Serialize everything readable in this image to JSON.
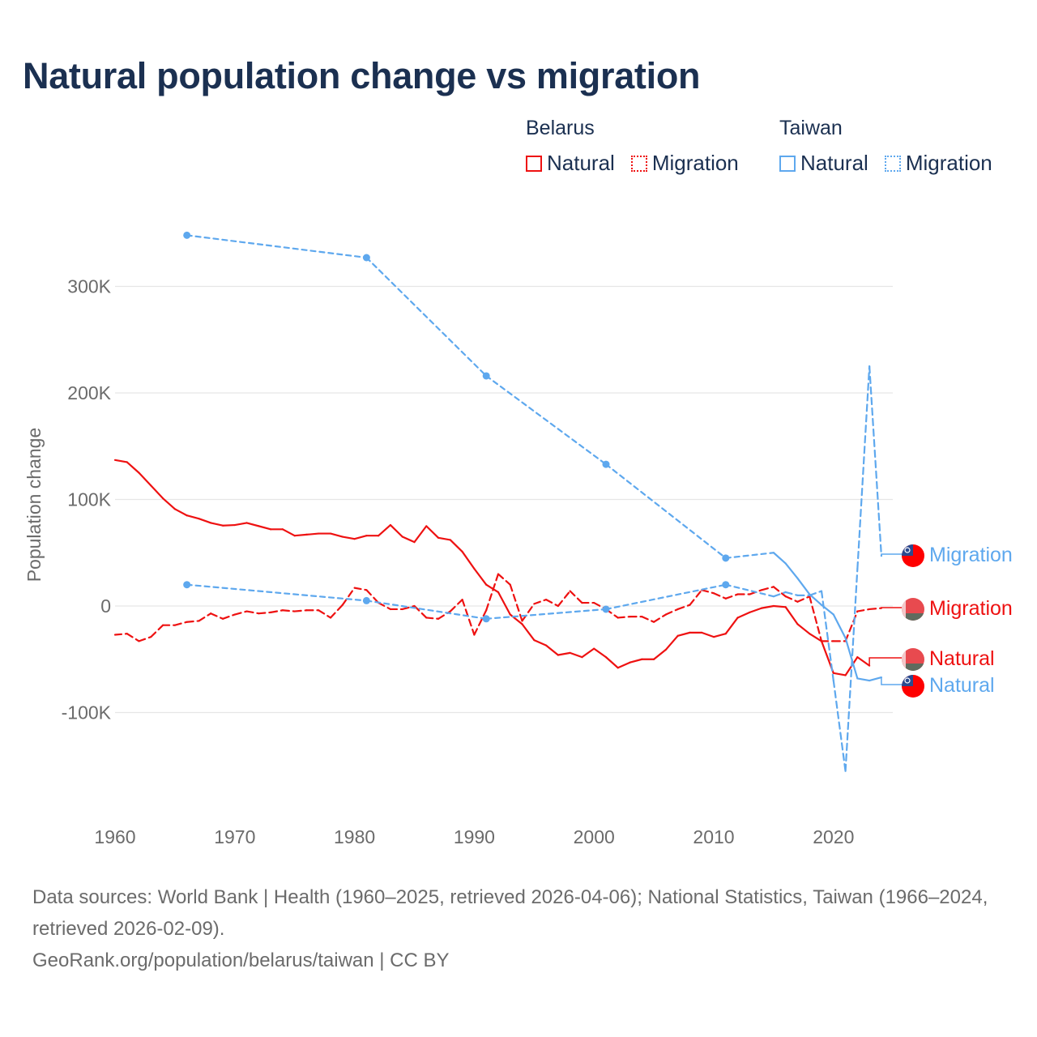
{
  "title": "Natural population change vs migration",
  "legend": {
    "groups": [
      {
        "country": "Belarus",
        "items": [
          {
            "label": "Natural",
            "style": "solid"
          },
          {
            "label": "Migration",
            "style": "dotted"
          }
        ],
        "color": "#ee1111"
      },
      {
        "country": "Taiwan",
        "items": [
          {
            "label": "Natural",
            "style": "solid"
          },
          {
            "label": "Migration",
            "style": "dotted"
          }
        ],
        "color": "#5ea8ee"
      }
    ]
  },
  "footer": {
    "sources": "Data sources: World Bank | Health (1960–2025, retrieved 2026-04-06); National Statistics, Taiwan (1966–2024, retrieved 2026-02-09).",
    "credit": "GeoRank.org/population/belarus/taiwan | CC BY"
  },
  "chart_data": {
    "type": "line",
    "title": "Natural population change vs migration",
    "xlabel": "",
    "ylabel": "Population change",
    "xlim": [
      1960,
      2025
    ],
    "ylim": [
      -170000,
      360000
    ],
    "x_ticks": [
      1960,
      1970,
      1980,
      1990,
      2000,
      2010,
      2020
    ],
    "x_tick_labels": [
      "1960",
      "1970",
      "1980",
      "1990",
      "2000",
      "2010",
      "2020"
    ],
    "y_ticks": [
      300000,
      200000,
      100000,
      0,
      -100000
    ],
    "y_tick_labels": [
      "300K",
      "200K",
      "100K",
      "0",
      "-100K"
    ],
    "grid": true,
    "legend_position": "top-right",
    "series": [
      {
        "name": "Belarus Natural",
        "end_label": "Natural",
        "country": "Belarus",
        "kind": "natural",
        "color": "#ee1111",
        "flag": "belarus-flag",
        "points": [
          [
            1960,
            137000
          ],
          [
            1961,
            135000
          ],
          [
            1962,
            125000
          ],
          [
            1963,
            113000
          ],
          [
            1964,
            101000
          ],
          [
            1965,
            91000
          ],
          [
            1966,
            85000
          ],
          [
            1967,
            82000
          ],
          [
            1968,
            78000
          ],
          [
            1969,
            75500
          ],
          [
            1970,
            76000
          ],
          [
            1971,
            78000
          ],
          [
            1972,
            75000
          ],
          [
            1973,
            72000
          ],
          [
            1974,
            72000
          ],
          [
            1975,
            66000
          ],
          [
            1976,
            67000
          ],
          [
            1977,
            68000
          ],
          [
            1978,
            68000
          ],
          [
            1979,
            65000
          ],
          [
            1980,
            63000
          ],
          [
            1981,
            66000
          ],
          [
            1982,
            66000
          ],
          [
            1983,
            76000
          ],
          [
            1984,
            65000
          ],
          [
            1985,
            60000
          ],
          [
            1986,
            75000
          ],
          [
            1987,
            64000
          ],
          [
            1988,
            62000
          ],
          [
            1989,
            51000
          ],
          [
            1990,
            35000
          ],
          [
            1991,
            20000
          ],
          [
            1992,
            13000
          ],
          [
            1993,
            -8000
          ],
          [
            1994,
            -17000
          ],
          [
            1995,
            -32000
          ],
          [
            1996,
            -37000
          ],
          [
            1997,
            -46000
          ],
          [
            1998,
            -44000
          ],
          [
            1999,
            -48000
          ],
          [
            2000,
            -40000
          ],
          [
            2001,
            -48000
          ],
          [
            2002,
            -58000
          ],
          [
            2003,
            -53000
          ],
          [
            2004,
            -50000
          ],
          [
            2005,
            -50000
          ],
          [
            2006,
            -41000
          ],
          [
            2007,
            -28000
          ],
          [
            2008,
            -25000
          ],
          [
            2009,
            -25000
          ],
          [
            2010,
            -29000
          ],
          [
            2011,
            -26000
          ],
          [
            2012,
            -11000
          ],
          [
            2013,
            -6000
          ],
          [
            2014,
            -2000
          ],
          [
            2015,
            0
          ],
          [
            2016,
            -1000
          ],
          [
            2017,
            -17000
          ],
          [
            2018,
            -26000
          ],
          [
            2019,
            -33000
          ],
          [
            2020,
            -63000
          ],
          [
            2021,
            -65000
          ],
          [
            2022,
            -48000
          ],
          [
            2023,
            -56000
          ]
        ]
      },
      {
        "name": "Belarus Migration",
        "end_label": "Migration",
        "country": "Belarus",
        "kind": "migration",
        "color": "#ee1111",
        "flag": "belarus-flag",
        "points": [
          [
            1960,
            -27000
          ],
          [
            1961,
            -26000
          ],
          [
            1962,
            -33000
          ],
          [
            1963,
            -29000
          ],
          [
            1964,
            -18000
          ],
          [
            1965,
            -18000
          ],
          [
            1966,
            -15000
          ],
          [
            1967,
            -14000
          ],
          [
            1968,
            -7000
          ],
          [
            1969,
            -12000
          ],
          [
            1970,
            -8000
          ],
          [
            1971,
            -5000
          ],
          [
            1972,
            -7000
          ],
          [
            1973,
            -6000
          ],
          [
            1974,
            -4000
          ],
          [
            1975,
            -5000
          ],
          [
            1976,
            -4000
          ],
          [
            1977,
            -4000
          ],
          [
            1978,
            -11000
          ],
          [
            1979,
            1000
          ],
          [
            1980,
            17000
          ],
          [
            1981,
            15000
          ],
          [
            1982,
            3000
          ],
          [
            1983,
            -3000
          ],
          [
            1984,
            -3000
          ],
          [
            1985,
            0
          ],
          [
            1986,
            -11000
          ],
          [
            1987,
            -12000
          ],
          [
            1988,
            -5000
          ],
          [
            1989,
            6000
          ],
          [
            1990,
            -27000
          ],
          [
            1991,
            -4000
          ],
          [
            1992,
            30000
          ],
          [
            1993,
            20000
          ],
          [
            1994,
            -14000
          ],
          [
            1995,
            2000
          ],
          [
            1996,
            6000
          ],
          [
            1997,
            0
          ],
          [
            1998,
            14000
          ],
          [
            1999,
            3000
          ],
          [
            2000,
            3000
          ],
          [
            2001,
            -3000
          ],
          [
            2002,
            -11000
          ],
          [
            2003,
            -10000
          ],
          [
            2004,
            -10000
          ],
          [
            2005,
            -15000
          ],
          [
            2006,
            -8000
          ],
          [
            2007,
            -3000
          ],
          [
            2008,
            1000
          ],
          [
            2009,
            15000
          ],
          [
            2010,
            12000
          ],
          [
            2011,
            7000
          ],
          [
            2012,
            11000
          ],
          [
            2013,
            11000
          ],
          [
            2014,
            15000
          ],
          [
            2015,
            18000
          ],
          [
            2016,
            9000
          ],
          [
            2017,
            4000
          ],
          [
            2018,
            9000
          ],
          [
            2019,
            -33000
          ],
          [
            2020,
            -33000
          ],
          [
            2021,
            -33000
          ],
          [
            2022,
            -5000
          ],
          [
            2023,
            -3000
          ],
          [
            2024,
            -2000
          ]
        ]
      },
      {
        "name": "Taiwan Natural",
        "end_label": "Natural",
        "country": "Taiwan",
        "kind": "natural",
        "color": "#5ea8ee",
        "flag": "taiwan-flag",
        "points": [
          [
            1966,
            348000
          ],
          [
            1981,
            327000
          ],
          [
            1991,
            216000
          ],
          [
            2001,
            133000
          ],
          [
            2011,
            45000
          ],
          [
            2015,
            50000
          ],
          [
            2016,
            40000
          ],
          [
            2017,
            26000
          ],
          [
            2018,
            11000
          ],
          [
            2019,
            1000
          ],
          [
            2020,
            -8000
          ],
          [
            2021,
            -30000
          ],
          [
            2022,
            -68000
          ],
          [
            2023,
            -70000
          ],
          [
            2024,
            -67000
          ]
        ]
      },
      {
        "name": "Taiwan Migration",
        "end_label": "Migration",
        "country": "Taiwan",
        "kind": "migration",
        "color": "#5ea8ee",
        "flag": "taiwan-flag",
        "points": [
          [
            1966,
            20000
          ],
          [
            1981,
            5000
          ],
          [
            1991,
            -12000
          ],
          [
            2001,
            -3000
          ],
          [
            2011,
            20000
          ],
          [
            2015,
            9000
          ],
          [
            2016,
            13000
          ],
          [
            2017,
            10000
          ],
          [
            2018,
            10000
          ],
          [
            2019,
            14000
          ],
          [
            2020,
            -70000
          ],
          [
            2021,
            -155000
          ],
          [
            2022,
            35000
          ],
          [
            2023,
            225000
          ],
          [
            2024,
            47000
          ]
        ]
      }
    ]
  }
}
